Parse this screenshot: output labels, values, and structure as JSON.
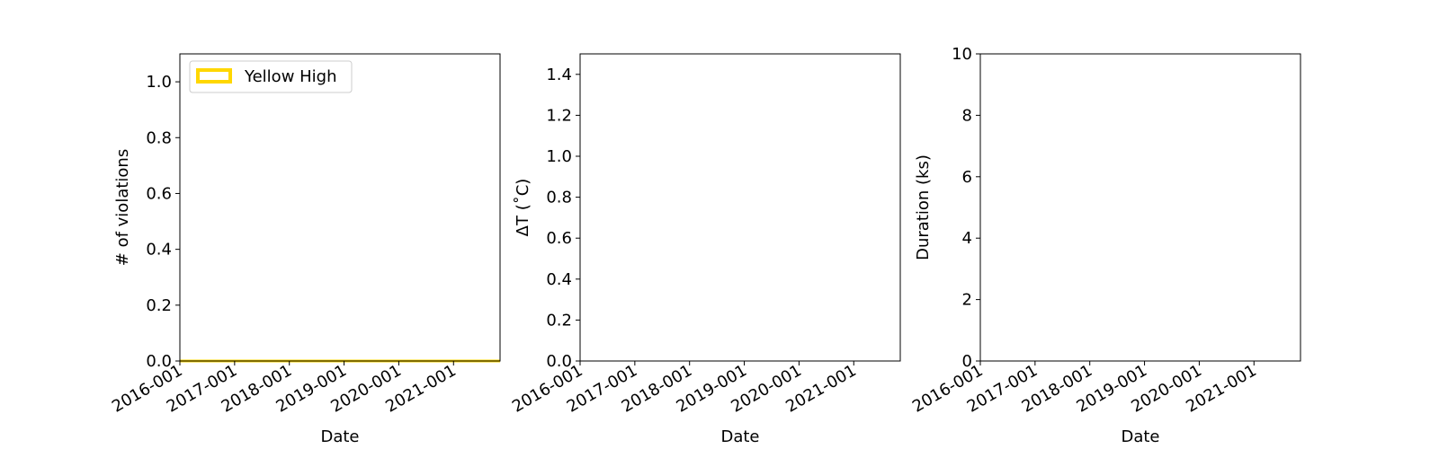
{
  "chart_data": [
    {
      "type": "area",
      "title": "",
      "xlabel": "Date",
      "ylabel": "# of violations",
      "x_ticks": [
        "2016-001",
        "2017-001",
        "2018-001",
        "2019-001",
        "2020-001",
        "2021-001"
      ],
      "xlim": [
        2016.0,
        2021.85
      ],
      "ylim": [
        0,
        1.1
      ],
      "y_ticks": [
        "0.0",
        "0.2",
        "0.4",
        "0.6",
        "0.8",
        "1.0"
      ],
      "y_tick_values": [
        0,
        0.2,
        0.4,
        0.6,
        0.8,
        1.0
      ],
      "series": [
        {
          "name": "Yellow High",
          "color": "#ffd700",
          "x": [
            2016.0,
            2021.85
          ],
          "values": [
            0,
            0
          ]
        }
      ],
      "legend": {
        "entries": [
          "Yellow High"
        ],
        "placement": "upper-left"
      },
      "grid": false
    },
    {
      "type": "line",
      "title": "",
      "xlabel": "Date",
      "ylabel": "ΔT (˚C)",
      "x_ticks": [
        "2016-001",
        "2017-001",
        "2018-001",
        "2019-001",
        "2020-001",
        "2021-001"
      ],
      "xlim": [
        2016.0,
        2021.85
      ],
      "ylim": [
        0,
        1.5
      ],
      "y_ticks": [
        "0.0",
        "0.2",
        "0.4",
        "0.6",
        "0.8",
        "1.0",
        "1.2",
        "1.4"
      ],
      "y_tick_values": [
        0,
        0.2,
        0.4,
        0.6,
        0.8,
        1.0,
        1.2,
        1.4
      ],
      "series": [],
      "grid": false
    },
    {
      "type": "line",
      "title": "",
      "xlabel": "Date",
      "ylabel": "Duration (ks)",
      "x_ticks": [
        "2016-001",
        "2017-001",
        "2018-001",
        "2019-001",
        "2020-001",
        "2021-001"
      ],
      "xlim": [
        2016.0,
        2021.85
      ],
      "ylim": [
        0,
        10
      ],
      "y_ticks": [
        "0",
        "2",
        "4",
        "6",
        "8",
        "10"
      ],
      "y_tick_values": [
        0,
        2,
        4,
        6,
        8,
        10
      ],
      "series": [],
      "grid": false
    }
  ]
}
